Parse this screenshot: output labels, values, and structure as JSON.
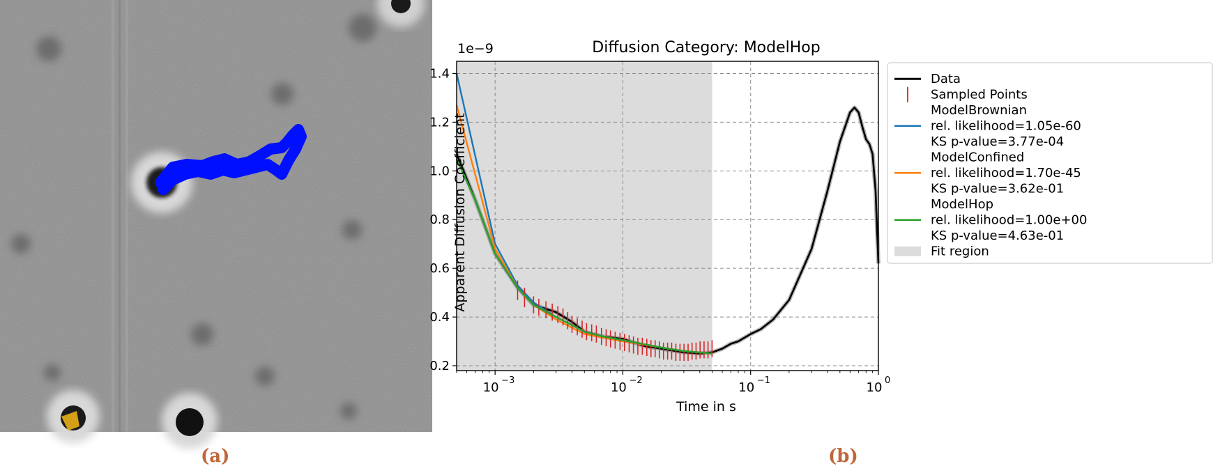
{
  "panels": {
    "a_label": "(a)",
    "b_label": "(b)"
  },
  "micrograph": {
    "track_color": "#0010ff",
    "marker_color": "#d4a017",
    "track_path": [
      [
        230,
        262
      ],
      [
        248,
        240
      ],
      [
        268,
        236
      ],
      [
        290,
        238
      ],
      [
        306,
        232
      ],
      [
        322,
        228
      ],
      [
        340,
        236
      ],
      [
        358,
        232
      ],
      [
        372,
        224
      ],
      [
        388,
        214
      ],
      [
        404,
        212
      ],
      [
        412,
        204
      ],
      [
        420,
        194
      ],
      [
        428,
        186
      ],
      [
        432,
        196
      ],
      [
        424,
        214
      ],
      [
        414,
        230
      ],
      [
        404,
        250
      ],
      [
        396,
        244
      ],
      [
        384,
        236
      ],
      [
        368,
        240
      ],
      [
        352,
        244
      ],
      [
        336,
        248
      ],
      [
        320,
        244
      ],
      [
        302,
        250
      ],
      [
        284,
        246
      ],
      [
        266,
        250
      ],
      [
        248,
        258
      ],
      [
        234,
        272
      ]
    ]
  },
  "chart_data": {
    "type": "line",
    "title": "Diffusion Category: ModelHop",
    "xlabel": "Time in s",
    "ylabel": "Apparent Diffusion Coefficient",
    "y_multiplier_label": "1e−9",
    "xscale": "log",
    "xlim": [
      0.0005,
      1
    ],
    "ylim": [
      0.18,
      1.45
    ],
    "grid": true,
    "legend_position": "right",
    "x_ticks": [
      {
        "value": 0.001,
        "label": "10",
        "exp": "−3"
      },
      {
        "value": 0.01,
        "label": "10",
        "exp": "−2"
      },
      {
        "value": 0.1,
        "label": "10",
        "exp": "−1"
      },
      {
        "value": 1,
        "label": "10",
        "exp": "0"
      }
    ],
    "y_ticks": [
      {
        "value": 0.2,
        "label": "0.2"
      },
      {
        "value": 0.4,
        "label": "0.4"
      },
      {
        "value": 0.6,
        "label": "0.6"
      },
      {
        "value": 0.8,
        "label": "0.8"
      },
      {
        "value": 1.0,
        "label": "1.0"
      },
      {
        "value": 1.2,
        "label": "1.2"
      },
      {
        "value": 1.4,
        "label": "1.4"
      }
    ],
    "fit_region": {
      "x_start": 0.0005,
      "x_end": 0.05,
      "color": "#dcdcdc"
    },
    "legend": [
      {
        "key": "data",
        "lines": [
          "Data"
        ],
        "color": "#000000",
        "kind": "line"
      },
      {
        "key": "sampled",
        "lines": [
          "Sampled Points"
        ],
        "color": "#d62728",
        "kind": "tick"
      },
      {
        "key": "brownian",
        "lines": [
          "ModelBrownian",
          "rel. likelihood=1.05e-60",
          "KS p-value=3.77e-04"
        ],
        "color": "#1f77b4",
        "kind": "line"
      },
      {
        "key": "confined",
        "lines": [
          "ModelConfined",
          "rel. likelihood=1.70e-45",
          "KS p-value=3.62e-01"
        ],
        "color": "#ff7f0e",
        "kind": "line"
      },
      {
        "key": "hop",
        "lines": [
          "ModelHop",
          "rel. likelihood=1.00e+00",
          "KS p-value=4.63e-01"
        ],
        "color": "#2ca02c",
        "kind": "line"
      },
      {
        "key": "fit",
        "lines": [
          "Fit region"
        ],
        "color": "#dcdcdc",
        "kind": "patch"
      }
    ],
    "series": [
      {
        "key": "data",
        "color": "#000000",
        "x": [
          0.0005,
          0.0007,
          0.001,
          0.0015,
          0.002,
          0.003,
          0.004,
          0.005,
          0.007,
          0.01,
          0.015,
          0.02,
          0.03,
          0.04,
          0.05,
          0.06,
          0.07,
          0.08,
          0.1,
          0.12,
          0.15,
          0.2,
          0.3,
          0.4,
          0.5,
          0.6,
          0.65,
          0.7,
          0.75,
          0.8,
          0.85,
          0.9,
          0.95,
          1.0
        ],
        "y": [
          1.07,
          0.88,
          0.66,
          0.52,
          0.45,
          0.42,
          0.38,
          0.34,
          0.32,
          0.31,
          0.28,
          0.27,
          0.255,
          0.25,
          0.255,
          0.27,
          0.29,
          0.3,
          0.33,
          0.35,
          0.39,
          0.47,
          0.68,
          0.92,
          1.12,
          1.24,
          1.26,
          1.24,
          1.18,
          1.13,
          1.11,
          1.07,
          0.92,
          0.62
        ]
      },
      {
        "key": "brownian",
        "color": "#1f77b4",
        "x": [
          0.0005,
          0.001,
          0.0015,
          0.002,
          0.003,
          0.005,
          0.01,
          0.02,
          0.03,
          0.05
        ],
        "y": [
          1.4,
          0.7,
          0.53,
          0.46,
          0.4,
          0.34,
          0.3,
          0.275,
          0.26,
          0.25
        ]
      },
      {
        "key": "confined",
        "color": "#ff7f0e",
        "x": [
          0.0005,
          0.001,
          0.0015,
          0.002,
          0.003,
          0.005,
          0.01,
          0.02,
          0.03,
          0.05
        ],
        "y": [
          1.27,
          0.68,
          0.52,
          0.45,
          0.39,
          0.33,
          0.3,
          0.275,
          0.26,
          0.25
        ]
      },
      {
        "key": "hop",
        "color": "#2ca02c",
        "x": [
          0.0005,
          0.0007,
          0.001,
          0.0015,
          0.002,
          0.003,
          0.005,
          0.007,
          0.01,
          0.02,
          0.03,
          0.05
        ],
        "y": [
          1.05,
          0.88,
          0.66,
          0.52,
          0.45,
          0.4,
          0.34,
          0.32,
          0.305,
          0.275,
          0.26,
          0.25
        ]
      }
    ],
    "sampled_points": {
      "color": "#d62728",
      "x": [
        0.0015,
        0.0017,
        0.002,
        0.0022,
        0.0025,
        0.0028,
        0.0031,
        0.0034,
        0.0037,
        0.004,
        0.0044,
        0.0048,
        0.0052,
        0.0057,
        0.0062,
        0.0068,
        0.0074,
        0.008,
        0.0087,
        0.0095,
        0.0103,
        0.0112,
        0.0121,
        0.0131,
        0.0142,
        0.0154,
        0.0166,
        0.0179,
        0.0193,
        0.0208,
        0.0224,
        0.0241,
        0.026,
        0.028,
        0.0301,
        0.0324,
        0.0348,
        0.0374,
        0.0402,
        0.0432,
        0.0464,
        0.0499
      ],
      "y": [
        0.51,
        0.48,
        0.45,
        0.44,
        0.43,
        0.42,
        0.41,
        0.4,
        0.385,
        0.37,
        0.36,
        0.35,
        0.34,
        0.335,
        0.33,
        0.32,
        0.315,
        0.31,
        0.305,
        0.3,
        0.295,
        0.29,
        0.285,
        0.28,
        0.28,
        0.275,
        0.27,
        0.27,
        0.265,
        0.26,
        0.26,
        0.26,
        0.255,
        0.255,
        0.255,
        0.255,
        0.26,
        0.26,
        0.265,
        0.265,
        0.265,
        0.27
      ],
      "err": [
        0.04,
        0.04,
        0.035,
        0.035,
        0.035,
        0.035,
        0.035,
        0.035,
        0.035,
        0.035,
        0.035,
        0.035,
        0.035,
        0.035,
        0.035,
        0.035,
        0.035,
        0.035,
        0.035,
        0.035,
        0.035,
        0.035,
        0.035,
        0.035,
        0.035,
        0.035,
        0.035,
        0.035,
        0.035,
        0.035,
        0.035,
        0.035,
        0.035,
        0.035,
        0.035,
        0.035,
        0.035,
        0.035,
        0.035,
        0.035,
        0.035,
        0.035
      ]
    }
  }
}
